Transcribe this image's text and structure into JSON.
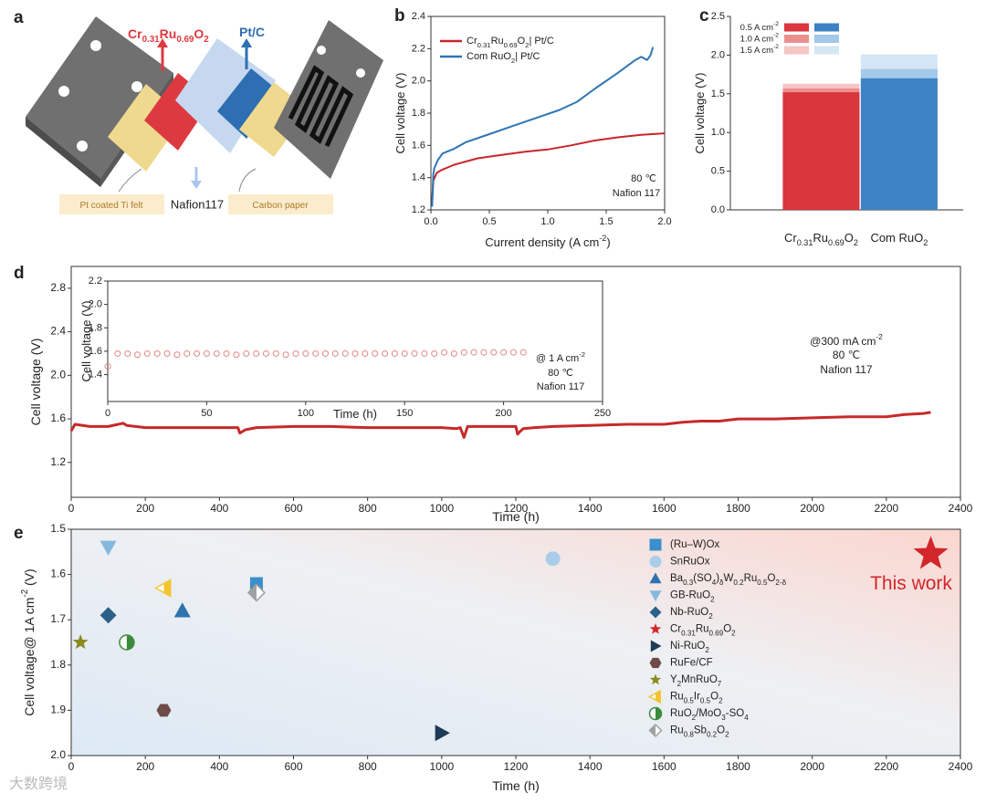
{
  "panel_a": {
    "label": "a",
    "anode_catalyst": "Cr0.31Ru0.69O2",
    "cathode_catalyst": "Pt/C",
    "anode_support": "Pt coated Ti felt",
    "membrane": "Nafion117",
    "cathode_support": "Carbon paper"
  },
  "watermark": "大数跨境",
  "chart_data": [
    {
      "panel_label": "b",
      "type": "line",
      "xlabel": "Current density (A cm-2)",
      "ylabel": "Cell voltage (V)",
      "xlim": [
        0,
        2
      ],
      "xticks": [
        {
          "value": 0,
          "label": "0.0"
        },
        0.5,
        {
          "value": 1,
          "label": "1.0"
        },
        1.5,
        {
          "value": 2,
          "label": "2.0"
        }
      ],
      "ylim": [
        1.2,
        2.4
      ],
      "yticks": [
        1.2,
        1.4,
        1.6,
        1.8,
        {
          "value": 2,
          "label": "2.0"
        },
        2.2,
        2.4
      ],
      "legend": "upper left",
      "annotations": [
        "80 ℃",
        "Nafion 117"
      ],
      "series": [
        {
          "name": "Cr0.31Ru0.69O2| Pt/C",
          "color": "#c9252c",
          "x": [
            0.01,
            0.02,
            0.05,
            0.1,
            0.2,
            0.3,
            0.4,
            0.6,
            0.8,
            1.0,
            1.2,
            1.4,
            1.6,
            1.8,
            2.0
          ],
          "values": [
            1.25,
            1.38,
            1.43,
            1.45,
            1.48,
            1.5,
            1.52,
            1.54,
            1.56,
            1.575,
            1.6,
            1.63,
            1.65,
            1.665,
            1.675
          ]
        },
        {
          "name": "Com RuO2| Pt/C",
          "color": "#2e75b6",
          "x": [
            0.01,
            0.02,
            0.03,
            0.06,
            0.1,
            0.2,
            0.3,
            0.5,
            0.7,
            0.9,
            1.1,
            1.25,
            1.4,
            1.6,
            1.75,
            1.8,
            1.85,
            1.88,
            1.9
          ],
          "values": [
            1.22,
            1.42,
            1.46,
            1.51,
            1.55,
            1.58,
            1.62,
            1.67,
            1.72,
            1.77,
            1.82,
            1.87,
            1.95,
            2.05,
            2.13,
            2.15,
            2.13,
            2.16,
            2.21
          ]
        }
      ]
    },
    {
      "panel_label": "c",
      "type": "bar",
      "ylabel": "Cell voltage (V)",
      "categories": [
        "Cr0.31Ru0.69O2",
        "Com RuO2"
      ],
      "ylim": [
        0,
        2.5
      ],
      "yticks": [
        {
          "value": 0,
          "label": "0.0"
        },
        0.5,
        {
          "value": 1,
          "label": "1.0"
        },
        1.5,
        {
          "value": 2,
          "label": "2.0"
        },
        2.5
      ],
      "legend": "upper left",
      "series": [
        {
          "name": "0.5 A cm-2",
          "colors": [
            "#d9363e",
            "#3d82c4"
          ],
          "values": [
            1.52,
            1.7
          ]
        },
        {
          "name": "1.0 A cm-2",
          "colors": [
            "#ea8f90",
            "#a3c8e9"
          ],
          "values": [
            1.57,
            1.82
          ]
        },
        {
          "name": "1.5 A cm-2",
          "colors": [
            "#f5c6c4",
            "#d5e6f4"
          ],
          "values": [
            1.63,
            2.01
          ]
        }
      ]
    },
    {
      "panel_label": "d",
      "type": "line",
      "xlabel": "Time (h)",
      "ylabel": "Cell voltage (V)",
      "xlim": [
        0,
        2400
      ],
      "xticks": [
        0,
        200,
        400,
        600,
        800,
        1000,
        1200,
        1400,
        1600,
        1800,
        2000,
        2200,
        2400
      ],
      "ylim": [
        0.88,
        3.0
      ],
      "yticks": [
        1.2,
        1.6,
        {
          "value": 2,
          "label": "2.0"
        },
        2.4,
        2.8
      ],
      "annotations": [
        "@300 mA cm-2",
        "80 ℃",
        "Nafion 117"
      ],
      "series": [
        {
          "color": "#c62a2a",
          "x": [
            0,
            10,
            50,
            100,
            140,
            150,
            200,
            300,
            400,
            450,
            455,
            470,
            500,
            600,
            700,
            800,
            900,
            1000,
            1040,
            1050,
            1060,
            1070,
            1100,
            1200,
            1205,
            1210,
            1220,
            1250,
            1300,
            1400,
            1500,
            1600,
            1650,
            1700,
            1750,
            1800,
            1900,
            2000,
            2100,
            2200,
            2250,
            2300,
            2320
          ],
          "values": [
            1.49,
            1.55,
            1.53,
            1.53,
            1.56,
            1.54,
            1.52,
            1.52,
            1.52,
            1.52,
            1.47,
            1.5,
            1.52,
            1.53,
            1.53,
            1.52,
            1.52,
            1.52,
            1.51,
            1.52,
            1.43,
            1.53,
            1.53,
            1.53,
            1.46,
            1.48,
            1.51,
            1.52,
            1.53,
            1.54,
            1.55,
            1.55,
            1.57,
            1.58,
            1.58,
            1.6,
            1.6,
            1.61,
            1.62,
            1.62,
            1.64,
            1.65,
            1.66
          ]
        }
      ]
    },
    {
      "type": "line",
      "marker": "circle-open",
      "xlabel": "Time (h)",
      "ylabel": "Cell voltage (V)",
      "xlim": [
        0,
        250
      ],
      "xticks": [
        0,
        50,
        100,
        150,
        200,
        250
      ],
      "ylim": [
        1.17,
        2.2
      ],
      "yticks": [
        1.4,
        1.6,
        1.8,
        {
          "value": 2,
          "label": "2.0"
        },
        2.2
      ],
      "annotations": [
        "@ 1 A cm-2",
        "80 ℃",
        "Nafion 117"
      ],
      "series": [
        {
          "color": "#e08585",
          "x": [
            0,
            5,
            10,
            15,
            20,
            25,
            30,
            35,
            40,
            45,
            50,
            55,
            60,
            65,
            70,
            75,
            80,
            85,
            90,
            95,
            100,
            105,
            110,
            115,
            120,
            125,
            130,
            135,
            140,
            145,
            150,
            155,
            160,
            165,
            170,
            175,
            180,
            185,
            190,
            195,
            200,
            205,
            210
          ],
          "values": [
            1.47,
            1.58,
            1.58,
            1.57,
            1.58,
            1.58,
            1.58,
            1.57,
            1.58,
            1.58,
            1.58,
            1.58,
            1.58,
            1.57,
            1.58,
            1.58,
            1.58,
            1.58,
            1.57,
            1.58,
            1.58,
            1.58,
            1.58,
            1.58,
            1.58,
            1.58,
            1.58,
            1.58,
            1.58,
            1.58,
            1.58,
            1.58,
            1.58,
            1.58,
            1.59,
            1.58,
            1.59,
            1.59,
            1.59,
            1.59,
            1.59,
            1.59,
            1.59
          ]
        }
      ]
    },
    {
      "panel_label": "e",
      "type": "scatter",
      "xlabel": "Time (h)",
      "ylabel": "Cell voltage@ 1A cm-2 (V)",
      "xlim": [
        0,
        2400
      ],
      "xticks": [
        0,
        200,
        400,
        600,
        800,
        1000,
        1200,
        1400,
        1600,
        1800,
        2000,
        2200,
        2400
      ],
      "ylim": [
        1.5,
        2.0
      ],
      "y_inverted": true,
      "yticks": [
        1.5,
        1.6,
        1.7,
        1.8,
        1.9,
        {
          "value": 2,
          "label": "2.0"
        }
      ],
      "legend": "upper right",
      "annotations": [
        "This work"
      ],
      "series": [
        {
          "name": "(Ru–W)Ox",
          "color": "#3b8fcc",
          "marker": "square",
          "marker_size": 7,
          "x": [
            500
          ],
          "values": [
            1.62
          ]
        },
        {
          "name": "SnRuOx",
          "color": "#a9cde9",
          "marker": "circle",
          "marker_size": 8,
          "x": [
            1300
          ],
          "values": [
            1.565
          ]
        },
        {
          "name": "Ba0.3(SO4)δW0.2Ru0.5O2-δ",
          "color": "#2e73ad",
          "marker": "triangle-up",
          "marker_size": 9,
          "x": [
            300
          ],
          "values": [
            1.68
          ]
        },
        {
          "name": "GB-RuO2",
          "color": "#86b8de",
          "marker": "triangle-down",
          "marker_size": 9,
          "x": [
            100
          ],
          "values": [
            1.54
          ]
        },
        {
          "name": "Nb-RuO2",
          "color": "#2b6089",
          "marker": "diamond",
          "marker_size": 9,
          "x": [
            100
          ],
          "values": [
            1.69
          ]
        },
        {
          "name": "Cr0.31Ru0.69O2",
          "color": "#d3262b",
          "marker": "star",
          "marker_size": 20,
          "x": [
            2320
          ],
          "values": [
            1.555
          ]
        },
        {
          "name": "Ni-RuO2",
          "color": "#1e3a56",
          "marker": "triangle-right",
          "marker_size": 9,
          "x": [
            1000
          ],
          "values": [
            1.95
          ]
        },
        {
          "name": "RuFe/CF",
          "color": "#6e4b47",
          "marker": "hexagon",
          "marker_size": 8,
          "x": [
            250
          ],
          "values": [
            1.9
          ]
        },
        {
          "name": "Y2MnRuO7",
          "color": "#8b8b1e",
          "marker": "star",
          "marker_size": 9,
          "x": [
            25
          ],
          "values": [
            1.75
          ]
        },
        {
          "name": "Ru0.5Ir0.5O2",
          "color": "#f4c430",
          "marker": "triangle-left-half",
          "marker_size": 9,
          "x": [
            250
          ],
          "values": [
            1.63
          ]
        },
        {
          "name": "RuO2/MoO3-SO4",
          "color": "#3b8b3b",
          "marker": "circle-half",
          "marker_size": 8,
          "x": [
            150
          ],
          "values": [
            1.75
          ]
        },
        {
          "name": "Ru0.8Sb0.2O2",
          "color": "#a0a0a0",
          "marker": "diamond-half",
          "marker_size": 9,
          "x": [
            500
          ],
          "values": [
            1.64
          ]
        }
      ]
    }
  ]
}
